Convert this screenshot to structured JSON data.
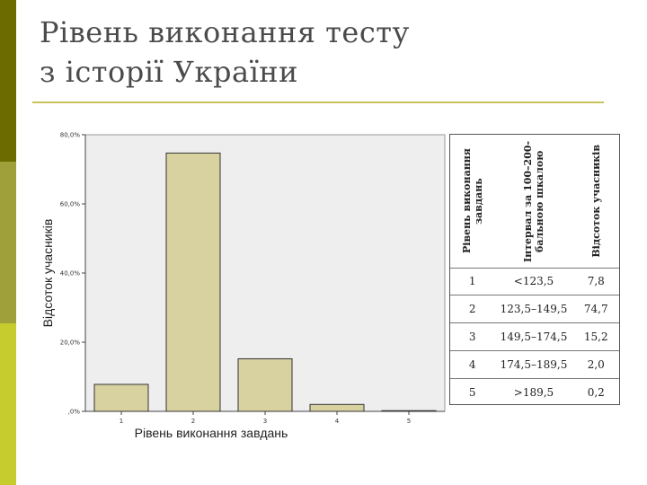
{
  "slide": {
    "title_line1": "Рівень виконання тесту",
    "title_line2": "з історії України"
  },
  "colors": {
    "strip_top": "#6b6b00",
    "strip_mid": "#9fa03a",
    "strip_bot": "#c7cc2e",
    "bar_fill": "#d8d1a0",
    "plot_bg": "#eeeeee"
  },
  "chart_data": {
    "type": "bar",
    "categories": [
      "1",
      "2",
      "3",
      "4",
      "5"
    ],
    "values": [
      7.8,
      74.7,
      15.2,
      2.0,
      0.2
    ],
    "xlabel": "Рівень виконання завдань",
    "ylabel": "Відсоток учасників",
    "ylim": [
      0,
      80
    ],
    "yticks": [
      0,
      20,
      40,
      60,
      80
    ],
    "ytick_labels": [
      ",0%",
      "20,0%",
      "40,0%",
      "60,0%",
      "80,0%"
    ],
    "grid": false
  },
  "table": {
    "headers": [
      "Рівень виконання завдань",
      "Інтервал за 100–200-бальною шкалою",
      "Відсоток учасників"
    ],
    "rows": [
      [
        "1",
        "<123,5",
        "7,8"
      ],
      [
        "2",
        "123,5–149,5",
        "74,7"
      ],
      [
        "3",
        "149,5–174,5",
        "15,2"
      ],
      [
        "4",
        "174,5–189,5",
        "2,0"
      ],
      [
        "5",
        ">189,5",
        "0,2"
      ]
    ]
  }
}
